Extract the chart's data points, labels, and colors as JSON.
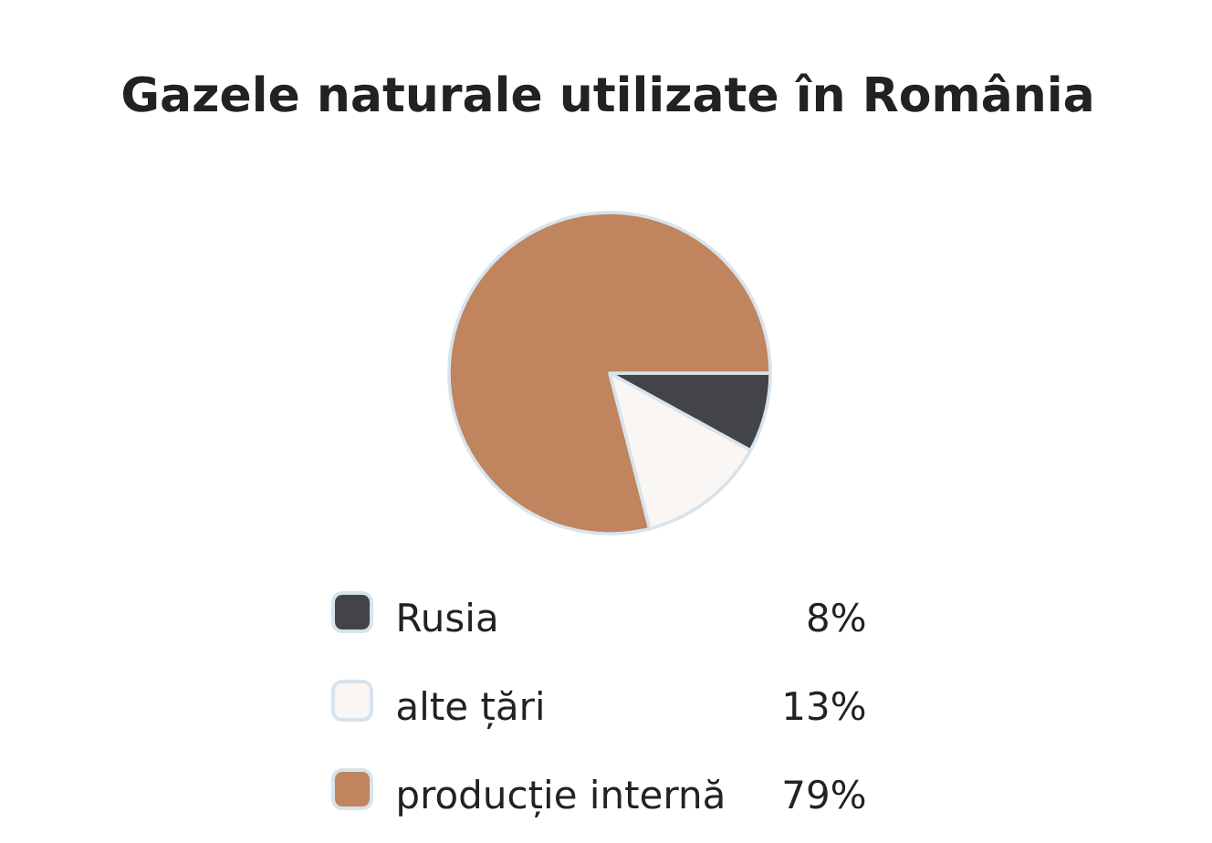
{
  "chart_data": {
    "type": "pie",
    "title": "Gazele naturale utilizate în România",
    "categories": [
      "Rusia",
      "alte țări",
      "producție internă"
    ],
    "values": [
      8,
      13,
      79
    ],
    "colors": [
      "#434447",
      "#faf6f3",
      "#c0845e"
    ],
    "value_labels": [
      "8%",
      "13%",
      "79%"
    ],
    "legend": "bottom"
  }
}
